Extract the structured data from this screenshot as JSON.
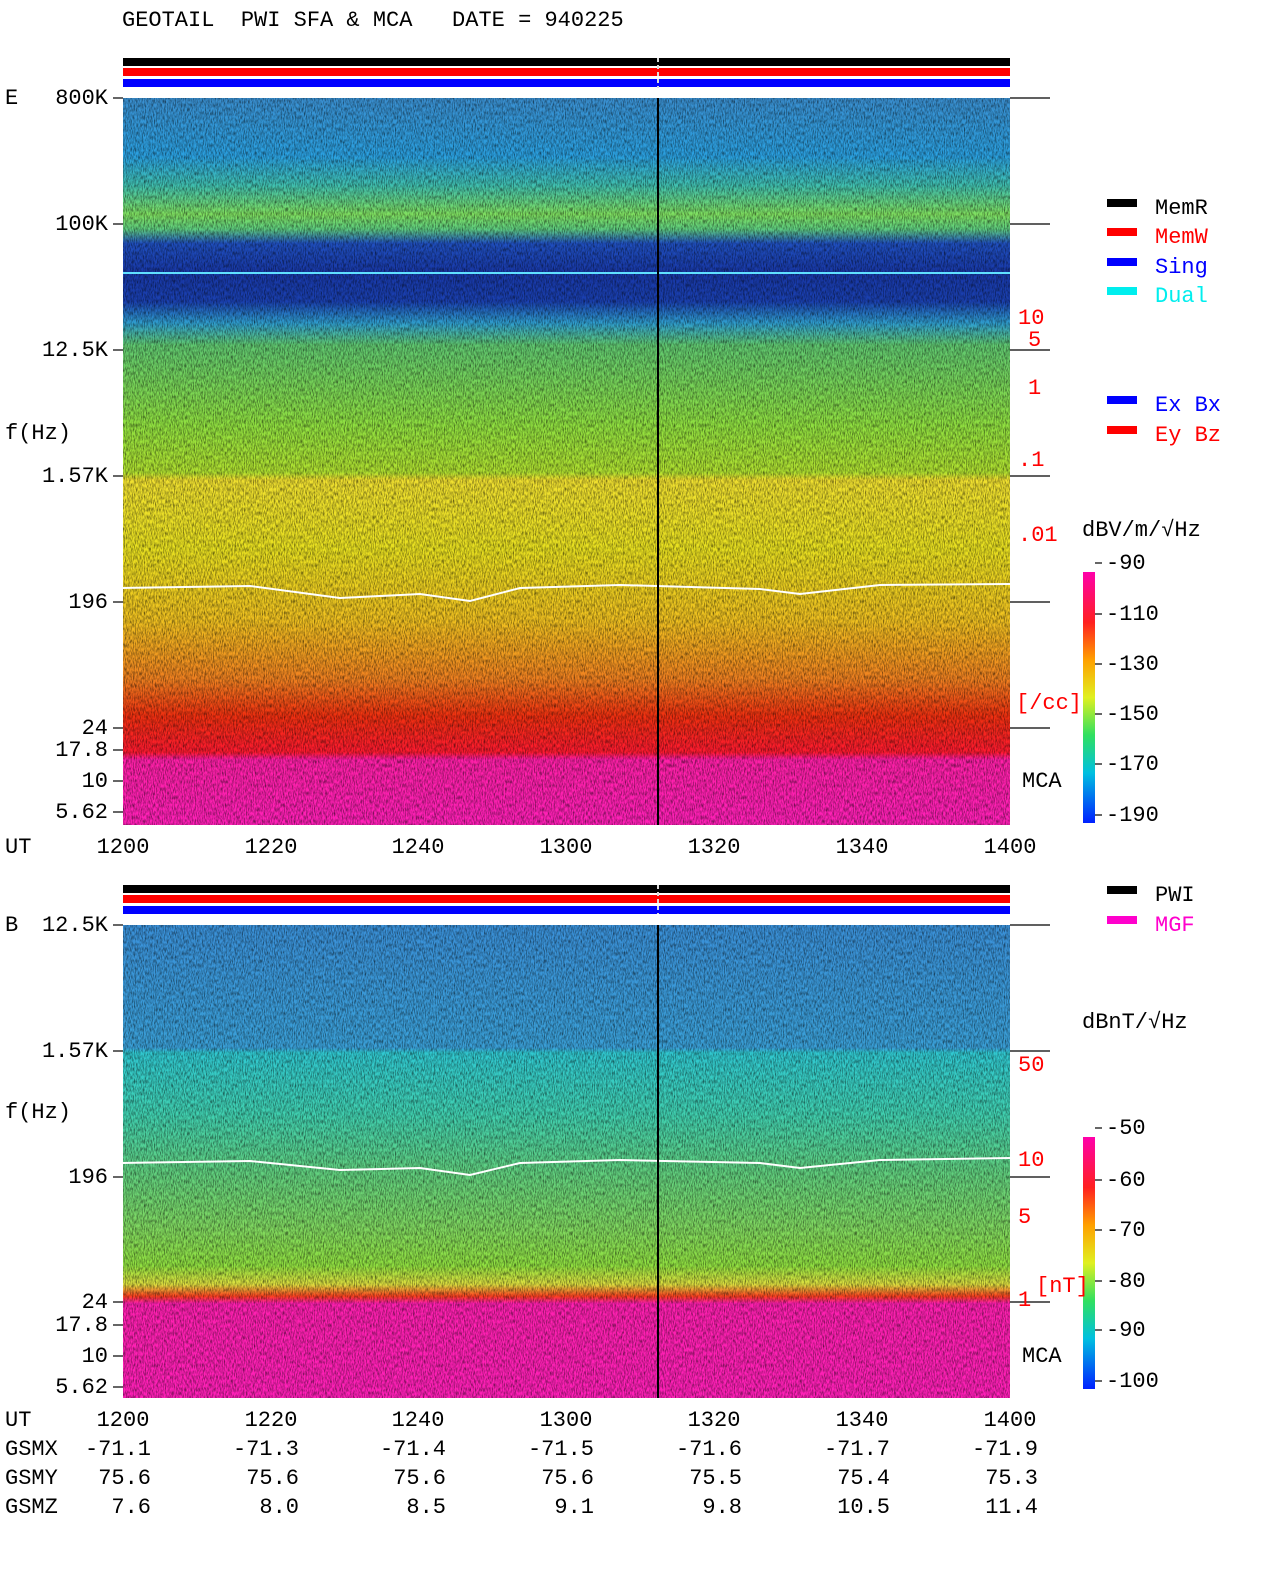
{
  "header": {
    "title": "GEOTAIL  PWI SFA & MCA   DATE = 940225"
  },
  "panels": [
    {
      "label": "E",
      "y_label": "f(Hz)",
      "freq_ticks": [
        "800K",
        "100K",
        "12.5K",
        "1.57K",
        "196",
        "24",
        "17.8",
        "10",
        "5.62"
      ],
      "right_labels": [
        "10",
        "5",
        "1",
        ".1",
        ".01",
        "[/cc]"
      ],
      "instrument": "MCA",
      "time_axis": {
        "label": "UT",
        "ticks": [
          "1200",
          "1220",
          "1240",
          "1300",
          "1320",
          "1340",
          "1400"
        ]
      },
      "legend": [
        {
          "name": "MemR",
          "color": "#000000"
        },
        {
          "name": "MemW",
          "color": "#ff0000"
        },
        {
          "name": "Sing",
          "color": "#0000ff"
        },
        {
          "name": "Dual",
          "color": "#00eeee"
        },
        {
          "name": "Ex Bx",
          "color": "#0000ff"
        },
        {
          "name": "Ey Bz",
          "color": "#ff0000"
        }
      ],
      "colorbar": {
        "unit": "dBV/m/√Hz",
        "ticks": [
          "-90",
          "-110",
          "-130",
          "-150",
          "-170",
          "-190"
        ]
      }
    },
    {
      "label": "B",
      "y_label": "f(Hz)",
      "freq_ticks": [
        "12.5K",
        "1.57K",
        "196",
        "24",
        "17.8",
        "10",
        "5.62"
      ],
      "right_labels": [
        "50",
        "10",
        "5",
        "1",
        "[nT]"
      ],
      "instrument": "MCA",
      "time_axis": {
        "label": "UT",
        "ticks": [
          "1200",
          "1220",
          "1240",
          "1300",
          "1320",
          "1340",
          "1400"
        ]
      },
      "legend": [
        {
          "name": "PWI",
          "color": "#000000"
        },
        {
          "name": "MGF",
          "color": "#ff00cc"
        }
      ],
      "colorbar": {
        "unit": "dBnT/√Hz",
        "ticks": [
          "-50",
          "-60",
          "-70",
          "-80",
          "-90",
          "-100"
        ]
      }
    }
  ],
  "ephemeris": [
    {
      "label": "GSMX",
      "values": [
        "-71.1",
        "-71.3",
        "-71.4",
        "-71.5",
        "-71.6",
        "-71.7",
        "-71.9"
      ]
    },
    {
      "label": "GSMY",
      "values": [
        "75.6",
        "75.6",
        "75.6",
        "75.6",
        "75.5",
        "75.4",
        "75.3"
      ]
    },
    {
      "label": "GSMZ",
      "values": [
        "7.6",
        "8.0",
        "8.5",
        "9.1",
        "9.8",
        "10.5",
        "11.4"
      ]
    }
  ]
}
